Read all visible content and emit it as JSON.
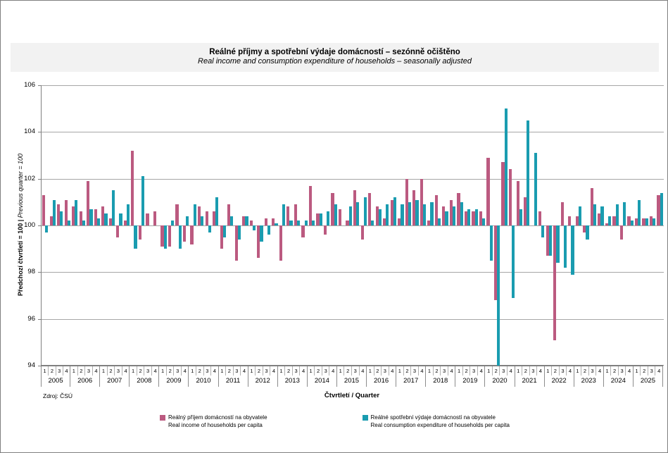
{
  "title": {
    "cs": "Reálné příjmy a spotřební výdaje domácností – sezónně očištěno",
    "en": "Real income and consumption expenditure of households – seasonally adjusted"
  },
  "y_axis": {
    "label_cs": "Předchozí čtvrtletí = 100",
    "label_separator": " | ",
    "label_en": "Previous quarter = 100",
    "min": 94,
    "max": 106,
    "step": 2,
    "ticks": [
      106,
      104,
      102,
      100,
      98,
      96,
      94
    ]
  },
  "x_axis": {
    "title": "Čtvrtletí / Quarter",
    "quarter_labels": [
      "1",
      "2",
      "3",
      "4"
    ]
  },
  "source": "Zdroj: ČSÚ",
  "legend": [
    {
      "cs": "Reálný příjem domácností na obyvatele",
      "en": "Real income of households per capita",
      "color": "#bb5a80"
    },
    {
      "cs": "Reálné spotřební výdaje domácností na obyvatele",
      "en": "Real consumption expenditure of households per capita",
      "color": "#1a9cb0"
    }
  ],
  "colors": {
    "income": "#bb5a80",
    "consumption": "#1a9cb0",
    "gridline": "#a6a6a6",
    "axis": "#808080",
    "title_band": "#f2f2f2"
  },
  "chart_data": {
    "type": "bar",
    "baseline": 100,
    "ylim": [
      94,
      106
    ],
    "grid": true,
    "legend_position": "bottom",
    "years": [
      2005,
      2006,
      2007,
      2008,
      2009,
      2010,
      2011,
      2012,
      2013,
      2014,
      2015,
      2016,
      2017,
      2018,
      2019,
      2020,
      2021,
      2022,
      2023,
      2024,
      2025
    ],
    "quarters_per_year": 4,
    "series": [
      {
        "name": "Reálný příjem domácností na obyvatele / Real income of households per capita",
        "color": "#bb5a80",
        "values": [
          101.3,
          100.4,
          100.9,
          101.1,
          100.8,
          100.6,
          101.9,
          100.7,
          100.8,
          100.3,
          99.5,
          100.2,
          103.2,
          99.4,
          100.5,
          100.6,
          99.1,
          99.1,
          100.9,
          99.3,
          99.2,
          100.8,
          100.6,
          100.6,
          99.0,
          100.9,
          98.5,
          100.4,
          100.2,
          98.6,
          100.3,
          100.3,
          98.5,
          100.8,
          100.9,
          99.5,
          101.7,
          100.5,
          99.6,
          101.4,
          100.7,
          100.2,
          101.5,
          99.4,
          101.4,
          100.8,
          100.3,
          101.1,
          100.3,
          102.0,
          101.5,
          102.0,
          100.2,
          101.3,
          100.8,
          101.1,
          101.4,
          100.6,
          100.6,
          100.6,
          102.9,
          96.8,
          102.7,
          102.4,
          101.9,
          101.2,
          100.0,
          100.6,
          98.7,
          95.1,
          101.0,
          100.4,
          100.4,
          99.7,
          101.6,
          100.5,
          100.1,
          100.4,
          99.4,
          100.4,
          100.3,
          100.3,
          100.4,
          101.3
        ]
      },
      {
        "name": "Reálné spotřební výdaje domácností na obyvatele / Real consumption expenditure of households per capita",
        "color": "#1a9cb0",
        "values": [
          99.7,
          101.1,
          100.6,
          100.2,
          101.1,
          100.2,
          100.7,
          100.3,
          100.5,
          101.5,
          100.5,
          100.9,
          99.0,
          102.1,
          100.0,
          100.0,
          99.0,
          100.2,
          99.0,
          100.4,
          100.9,
          100.4,
          99.7,
          101.2,
          99.5,
          100.4,
          99.4,
          100.4,
          99.8,
          99.3,
          99.6,
          100.1,
          100.9,
          100.2,
          100.2,
          100.2,
          100.2,
          100.5,
          100.6,
          100.9,
          100.0,
          100.8,
          101.0,
          101.2,
          100.2,
          100.7,
          100.9,
          101.2,
          100.9,
          101.0,
          101.1,
          100.9,
          101.0,
          100.3,
          100.6,
          100.8,
          101.0,
          100.7,
          100.7,
          100.3,
          98.5,
          94.0,
          105.0,
          96.9,
          100.7,
          104.5,
          103.1,
          99.5,
          98.7,
          98.4,
          98.2,
          97.9,
          100.8,
          99.4,
          100.9,
          100.8,
          100.4,
          100.9,
          101.0,
          100.2,
          101.1,
          100.3,
          100.3,
          101.4
        ]
      }
    ]
  }
}
